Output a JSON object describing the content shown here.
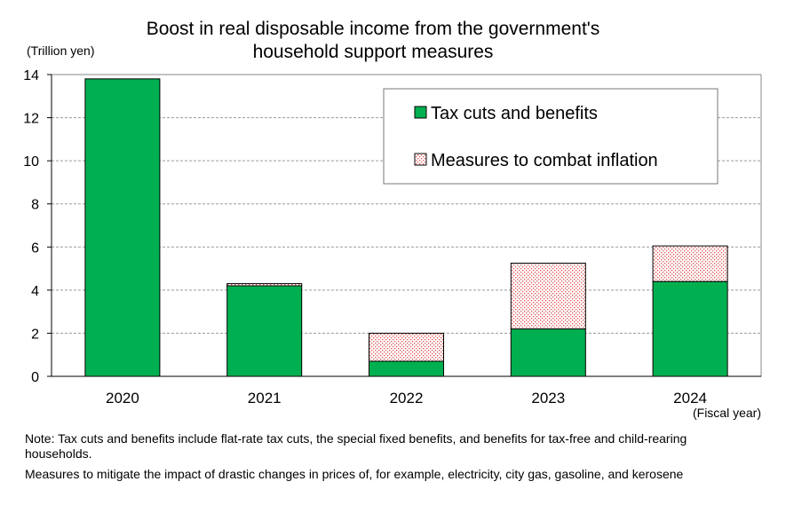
{
  "chart_data": {
    "type": "bar",
    "stacked": true,
    "title_lines": [
      "Boost in real disposable income from the government's",
      "household support measures"
    ],
    "ylabel": "(Trillion yen)",
    "xlabel": "(Fiscal year)",
    "categories": [
      "2020",
      "2021",
      "2022",
      "2023",
      "2024"
    ],
    "ylim": [
      0,
      14
    ],
    "yticks": [
      "0",
      "2",
      "4",
      "6",
      "8",
      "10",
      "12",
      "14"
    ],
    "grid": true,
    "legend_position": "top-right",
    "series": [
      {
        "name": "Tax cuts and benefits",
        "values": [
          13.8,
          4.2,
          0.7,
          2.2,
          4.4
        ],
        "color": "#00b050",
        "pattern": "solid"
      },
      {
        "name": "Measures to combat inflation",
        "values": [
          0.0,
          0.1,
          1.3,
          3.05,
          1.65
        ],
        "color": "#ff8080",
        "pattern": "dotted"
      }
    ]
  },
  "notes": [
    "Note: Tax cuts and benefits include flat-rate tax cuts, the special fixed benefits, and benefits for tax-free and child-rearing households.",
    "Measures to mitigate the impact of drastic changes in prices of, for example, electricity, city gas, gasoline, and kerosene"
  ]
}
